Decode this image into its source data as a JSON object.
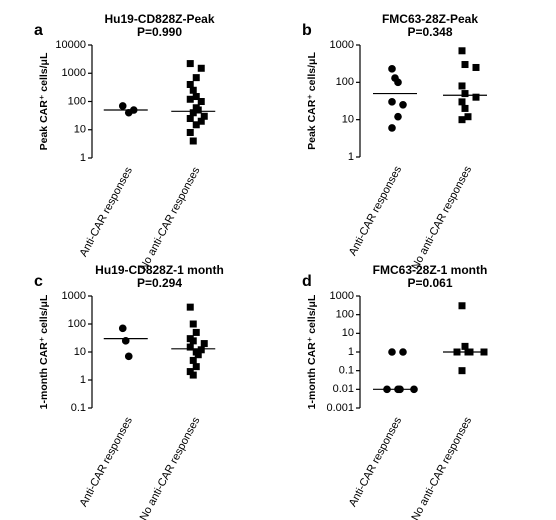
{
  "chart_data": [
    {
      "type": "dot",
      "letter": "a",
      "title": "Hu19-CD828Z-Peak",
      "subtitle": "P=0.990",
      "y_label": "Peak CAR⁺ cells/μL",
      "log_scale": true,
      "ylim": [
        1,
        10000
      ],
      "yticks": [
        1,
        10,
        100,
        1000,
        10000
      ],
      "categories": [
        "Anti-CAR responses",
        "No anti-CAR responses"
      ],
      "markers": [
        "circle",
        "square"
      ],
      "color": "#000000",
      "values": [
        [
          70,
          50,
          40
        ],
        [
          2200,
          1500,
          700,
          400,
          250,
          150,
          120,
          100,
          60,
          50,
          40,
          30,
          25,
          20,
          15,
          8,
          4
        ]
      ],
      "medians": [
        50,
        45
      ]
    },
    {
      "type": "dot",
      "letter": "b",
      "title": "FMC63-28Z-Peak",
      "subtitle": "P=0.348",
      "y_label": "Peak CAR⁺ cells/μL",
      "log_scale": true,
      "ylim": [
        1,
        1000
      ],
      "yticks": [
        1,
        10,
        100,
        1000
      ],
      "categories": [
        "Anti-CAR responses",
        "No anti-CAR responses"
      ],
      "markers": [
        "circle",
        "square"
      ],
      "color": "#000000",
      "values": [
        [
          230,
          130,
          100,
          30,
          25,
          12,
          6
        ],
        [
          700,
          300,
          250,
          80,
          50,
          40,
          30,
          20,
          12,
          10
        ]
      ],
      "medians": [
        50,
        45
      ]
    },
    {
      "type": "dot",
      "letter": "c",
      "title": "Hu19-CD828Z-1 month",
      "subtitle": "P=0.294",
      "y_label": "1-month CAR⁺ cells/μL",
      "log_scale": true,
      "ylim": [
        0.1,
        1000
      ],
      "yticks": [
        0.1,
        1,
        10,
        100,
        1000
      ],
      "categories": [
        "Anti-CAR responses",
        "No anti-CAR responses"
      ],
      "markers": [
        "circle",
        "square"
      ],
      "color": "#000000",
      "values": [
        [
          70,
          25,
          7
        ],
        [
          400,
          100,
          50,
          30,
          25,
          20,
          15,
          12,
          10,
          8,
          5,
          3,
          2,
          1.5
        ]
      ],
      "medians": [
        30,
        13
      ]
    },
    {
      "type": "dot",
      "letter": "d",
      "title": "FMC63-28Z-1 month",
      "subtitle": "P=0.061",
      "y_label": "1-month CAR⁺ cells/μL",
      "log_scale": true,
      "ylim": [
        0.001,
        1000
      ],
      "yticks": [
        0.001,
        0.01,
        0.1,
        1,
        10,
        100,
        1000
      ],
      "categories": [
        "Anti-CAR responses",
        "No anti-CAR responses"
      ],
      "markers": [
        "circle",
        "square"
      ],
      "color": "#000000",
      "values": [
        [
          1,
          1,
          0.01,
          0.01,
          0.01,
          0.01
        ],
        [
          300,
          2,
          1,
          1,
          1,
          1,
          0.1
        ]
      ],
      "medians": [
        0.01,
        1
      ]
    }
  ]
}
